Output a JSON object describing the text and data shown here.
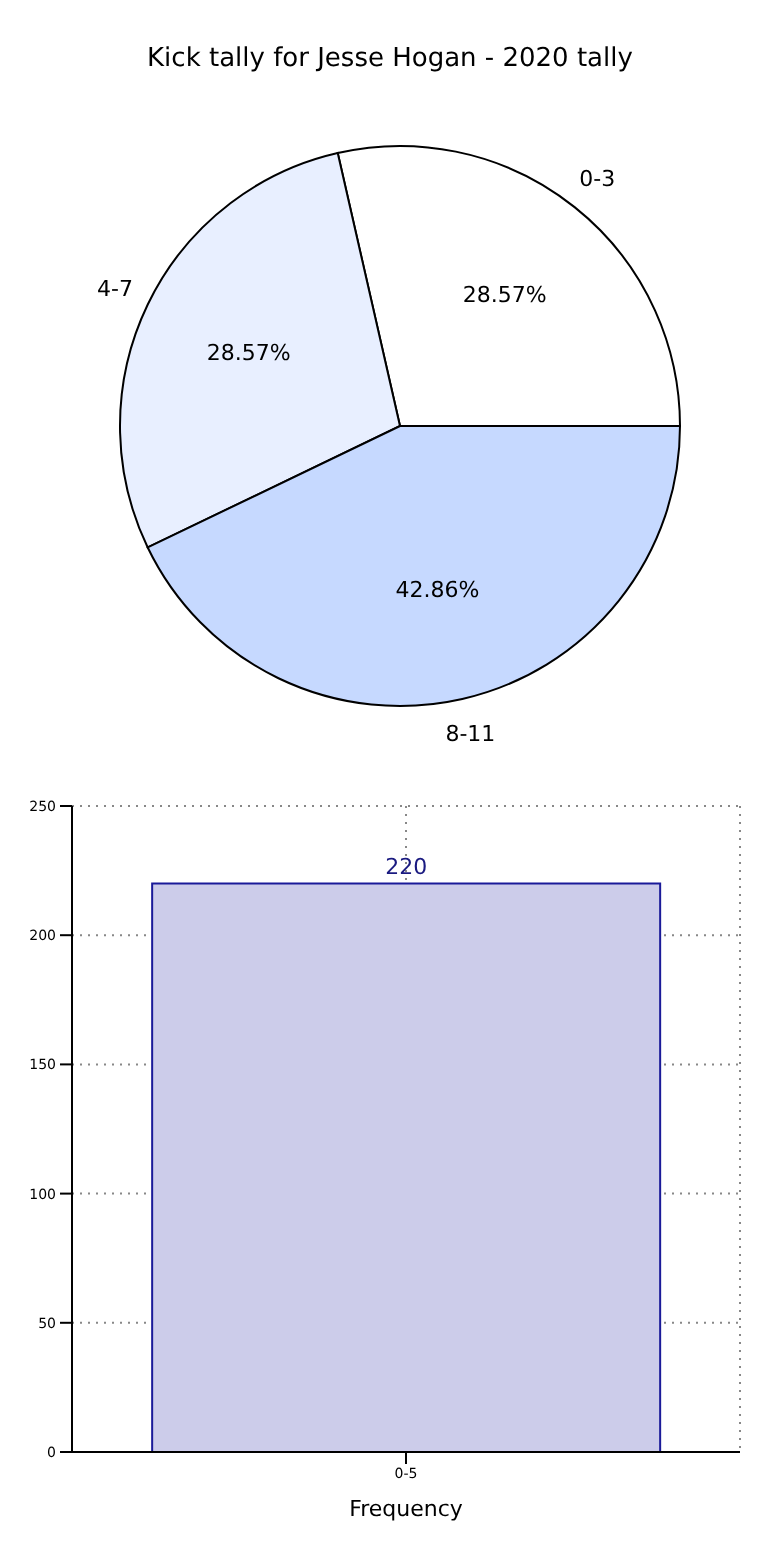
{
  "chart_data": [
    {
      "type": "pie",
      "title": "Kick tally for Jesse Hogan - 2020 tally",
      "categories": [
        "0-3",
        "4-7",
        "8-11"
      ],
      "values": [
        28.57,
        28.57,
        42.86
      ],
      "value_labels": [
        "28.57%",
        "28.57%",
        "42.86%"
      ],
      "colors": [
        "#ffffff",
        "#e8efff",
        "#c6d9ff"
      ]
    },
    {
      "type": "bar",
      "xlabel": "Frequency",
      "categories": [
        "0-5"
      ],
      "values": [
        220
      ],
      "color": "#ccccea",
      "ylim": [
        0,
        250
      ],
      "yticks": [
        0,
        50,
        100,
        150,
        200,
        250
      ],
      "grid": true,
      "data_labels": true
    }
  ]
}
